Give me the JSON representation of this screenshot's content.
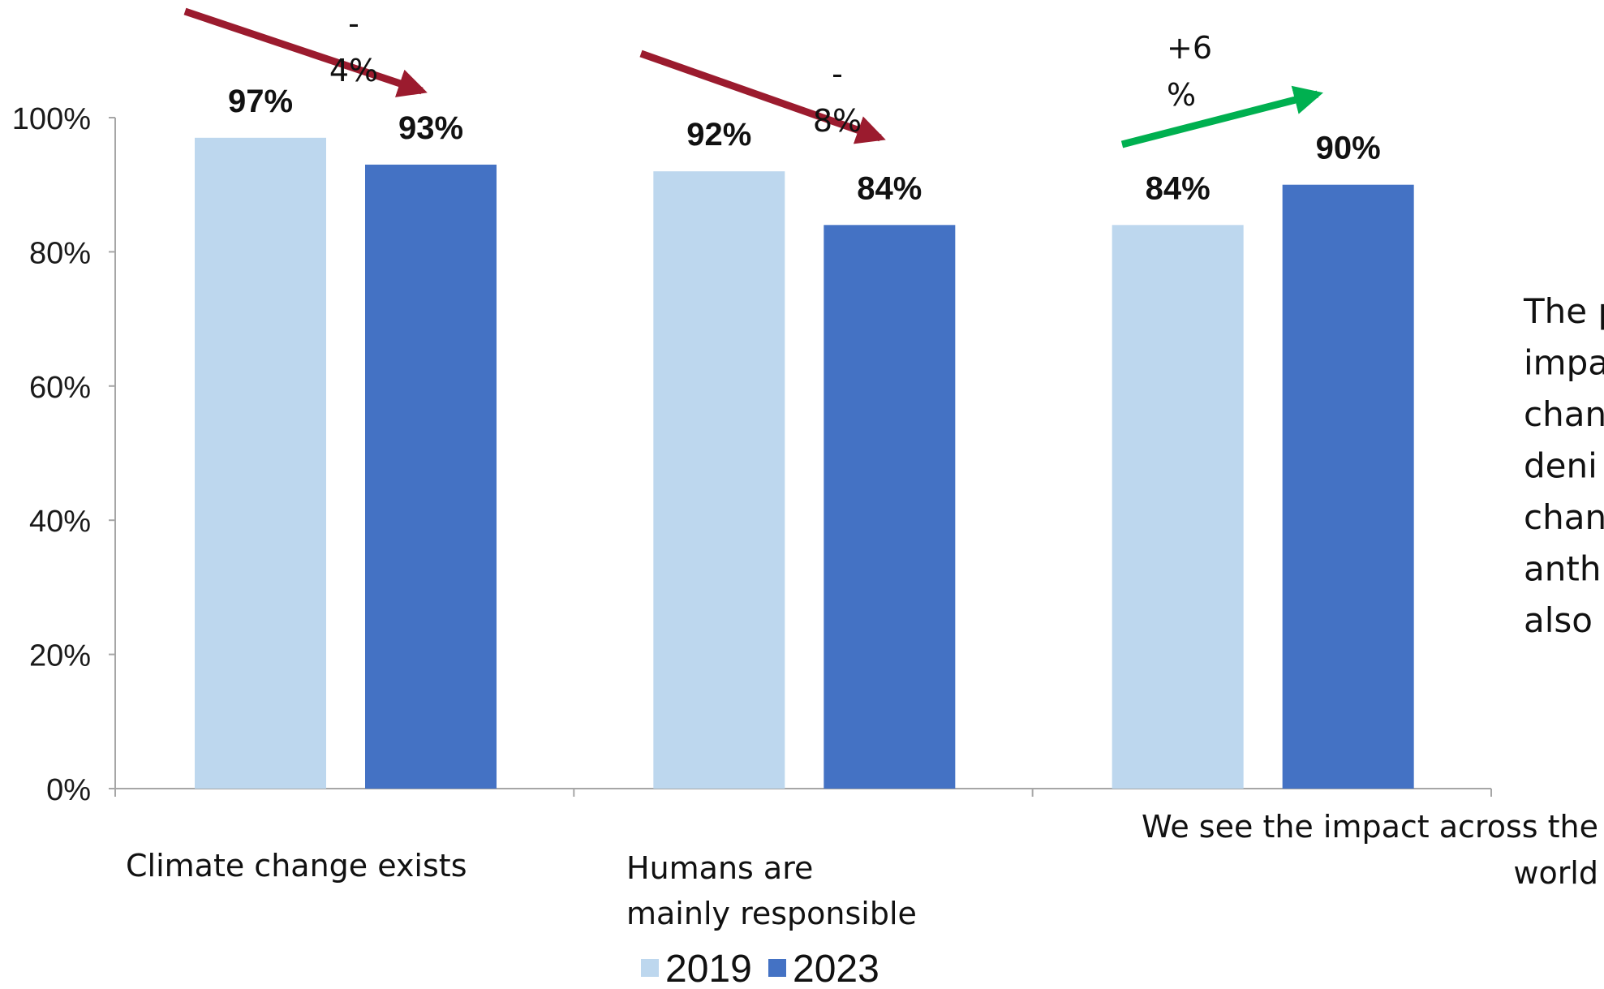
{
  "chart_data": {
    "type": "bar",
    "categories": [
      [
        "Climate change exists"
      ],
      [
        "Humans are",
        "mainly responsible"
      ],
      [
        "We see the impact across the",
        "world"
      ]
    ],
    "series": [
      {
        "name": "2019",
        "values": [
          97,
          92,
          84
        ],
        "data_labels": [
          "97%",
          "92%",
          "84%"
        ],
        "color": "#bdd7ee"
      },
      {
        "name": "2023",
        "values": [
          93,
          84,
          90
        ],
        "data_labels": [
          "93%",
          "84%",
          "90%"
        ],
        "color": "#4472c4"
      }
    ],
    "ylim": [
      0,
      100
    ],
    "y_ticks": [
      "0%",
      "20%",
      "40%",
      "60%",
      "80%",
      "100%"
    ],
    "changes": [
      {
        "lines": [
          "-",
          "4%"
        ],
        "direction": "down",
        "color": "#9b1b2e"
      },
      {
        "lines": [
          "-",
          "8%"
        ],
        "direction": "down",
        "color": "#9b1b2e"
      },
      {
        "lines": [
          "+6",
          "%"
        ],
        "direction": "up",
        "color": "#00b050"
      }
    ],
    "legend_position": "bottom-center",
    "side_text_lines": [
      "The p",
      "impa",
      "chan",
      "deni",
      "chan",
      "anth",
      "also"
    ]
  }
}
